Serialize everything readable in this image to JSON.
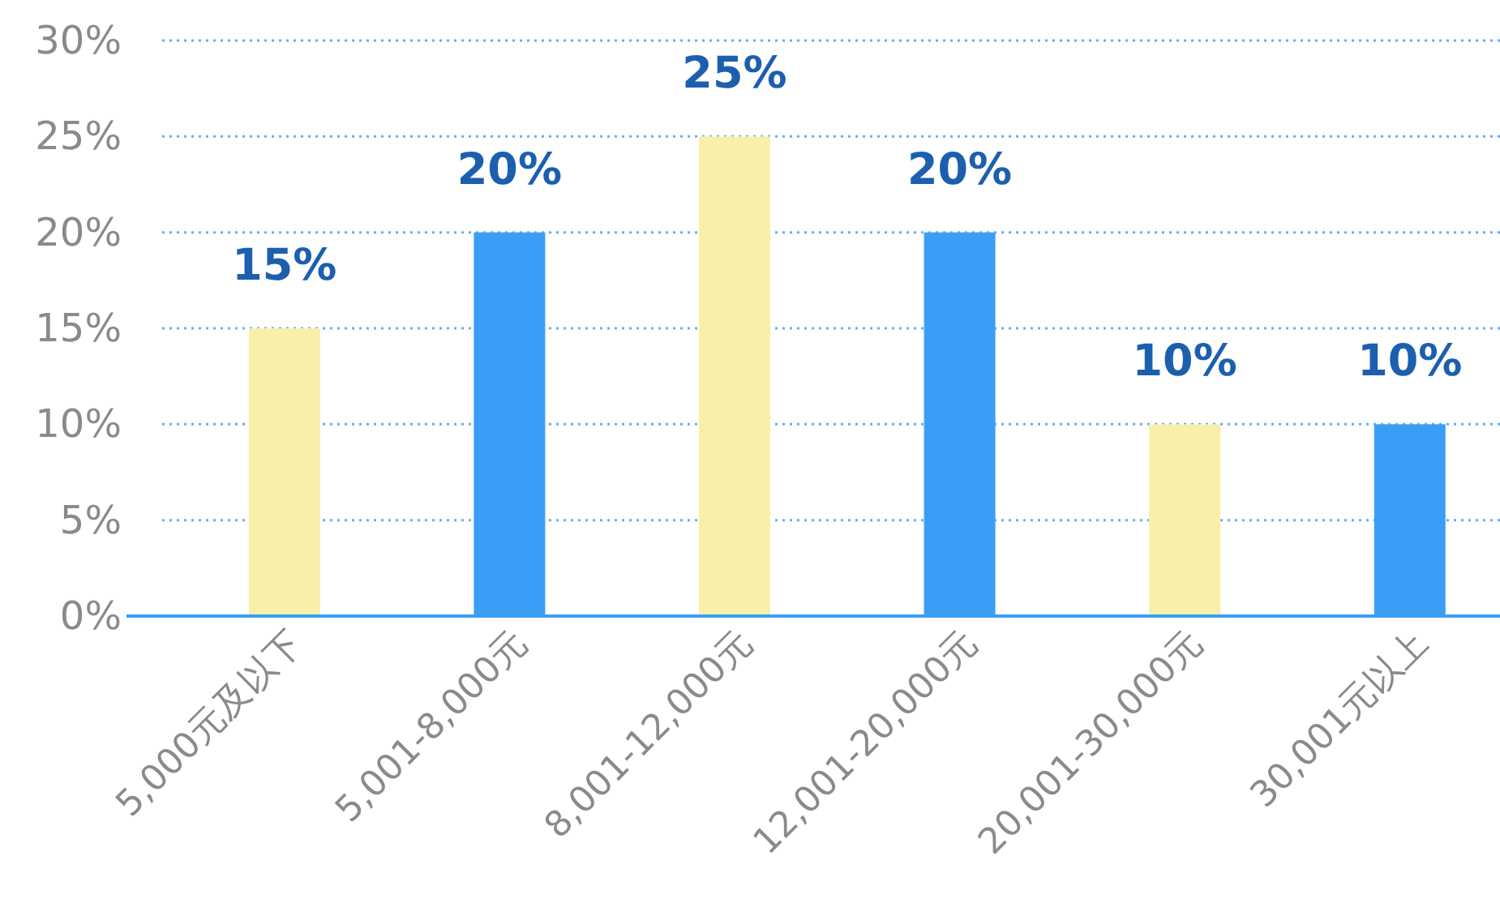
{
  "chart_data": {
    "type": "bar",
    "categories": [
      "5,000元及以下",
      "5,001-8,000元",
      "8,001-12,000元",
      "12,001-20,000元",
      "20,001-30,000元",
      "30,001元以上"
    ],
    "values": [
      15,
      20,
      25,
      20,
      10,
      10
    ],
    "colors": [
      "#f8f0a8",
      "#3b9ef6",
      "#f8f0a8",
      "#3b9ef6",
      "#f8f0a8",
      "#3b9ef6"
    ],
    "value_labels": [
      "15%",
      "20%",
      "25%",
      "20%",
      "10%",
      "10%"
    ],
    "ylim": [
      0,
      30
    ],
    "yticks": [
      {
        "value": 0,
        "label": "0%"
      },
      {
        "value": 5,
        "label": "5%"
      },
      {
        "value": 10,
        "label": "10%"
      },
      {
        "value": 15,
        "label": "15%"
      },
      {
        "value": 20,
        "label": "20%"
      },
      {
        "value": 25,
        "label": "25%"
      },
      {
        "value": 30,
        "label": "30%"
      }
    ],
    "grid": "y"
  }
}
